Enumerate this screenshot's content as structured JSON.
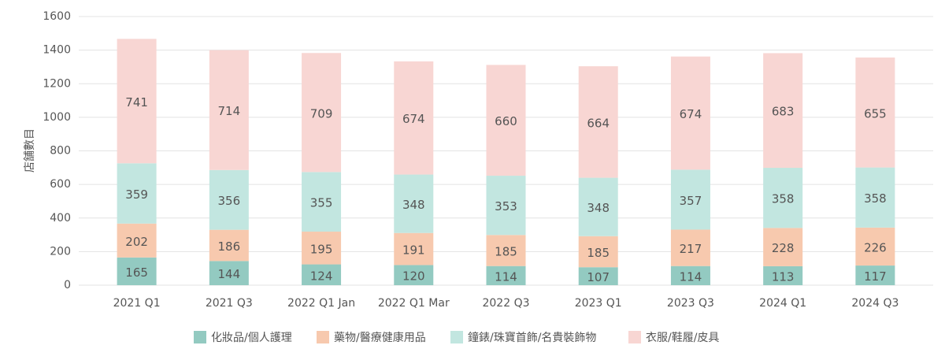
{
  "chart_data": {
    "type": "stacked_bar",
    "y_label": "店舗數目",
    "categories": [
      "2021 Q1",
      "2021 Q3",
      "2022 Q1 Jan",
      "2022 Q1 Mar",
      "2022 Q3",
      "2023 Q1",
      "2023 Q3",
      "2024 Q1",
      "2024 Q3"
    ],
    "series": [
      {
        "name": "化妝品/個人護理",
        "color": "#93cac1",
        "values": [
          165,
          144,
          124,
          120,
          114,
          107,
          114,
          113,
          117
        ]
      },
      {
        "name": "藥物/醫療健康用品",
        "color": "#f7c9ae",
        "values": [
          202,
          186,
          195,
          191,
          185,
          185,
          217,
          228,
          226
        ]
      },
      {
        "name": "鐘錶/珠寶首飾/名貴裝飾物",
        "color": "#c2e6e0",
        "values": [
          359,
          356,
          355,
          348,
          353,
          348,
          357,
          358,
          358
        ]
      },
      {
        "name": "衣服/鞋履/皮具",
        "color": "#f8d6d3",
        "values": [
          741,
          714,
          709,
          674,
          660,
          664,
          674,
          683,
          655
        ]
      }
    ],
    "ylim": [
      0,
      1600
    ],
    "yticks": [
      0,
      200,
      400,
      600,
      800,
      1000,
      1200,
      1400,
      1600
    ],
    "grid": true,
    "legend": "bottom"
  }
}
